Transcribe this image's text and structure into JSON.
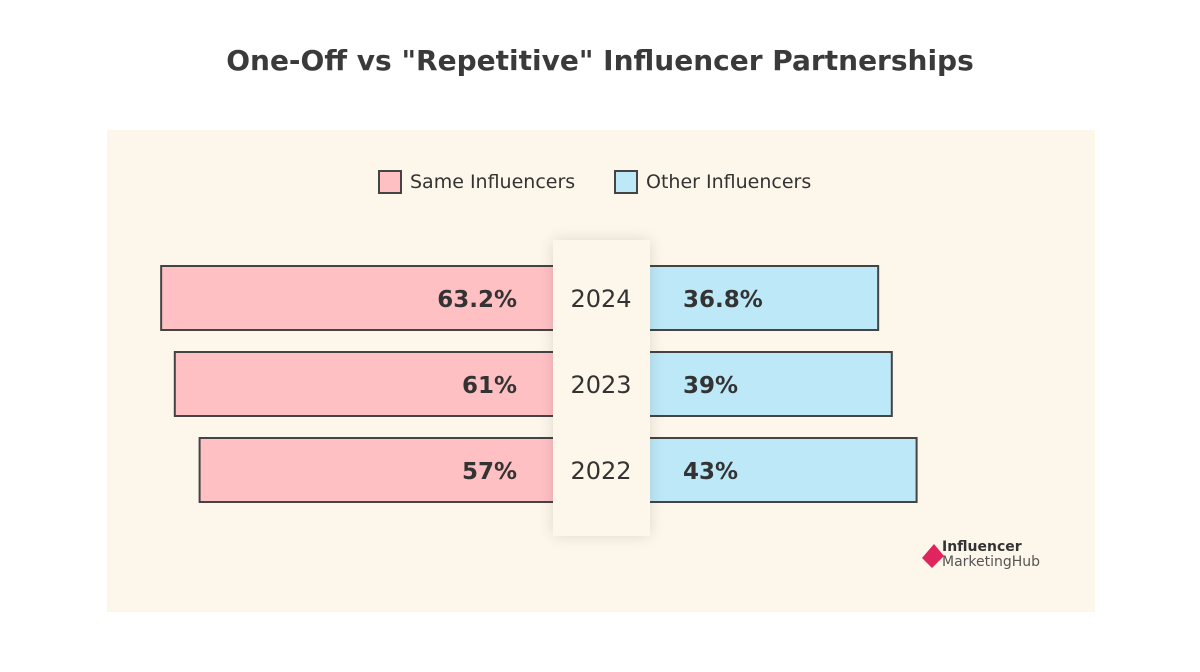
{
  "chart_data": {
    "type": "bar",
    "orientation": "diverging-horizontal",
    "title": "One-Off vs \"Repetitive\" Influencer Partnerships",
    "categories": [
      "2024",
      "2023",
      "2022"
    ],
    "series": [
      {
        "name": "Same Influencers",
        "values": [
          63.2,
          61,
          57
        ],
        "labels": [
          "63.2%",
          "61%",
          "57%"
        ],
        "color": "#ffc0c4",
        "side": "left"
      },
      {
        "name": "Other Influencers",
        "values": [
          36.8,
          39,
          43
        ],
        "labels": [
          "36.8%",
          "39%",
          "43%"
        ],
        "color": "#bde8f7",
        "side": "right"
      }
    ],
    "legend_position": "top",
    "grid": false,
    "background": "#fdf6ea"
  },
  "logo": {
    "line1": "Influencer",
    "line2": "MarketingHub",
    "color": "#e0245e"
  }
}
